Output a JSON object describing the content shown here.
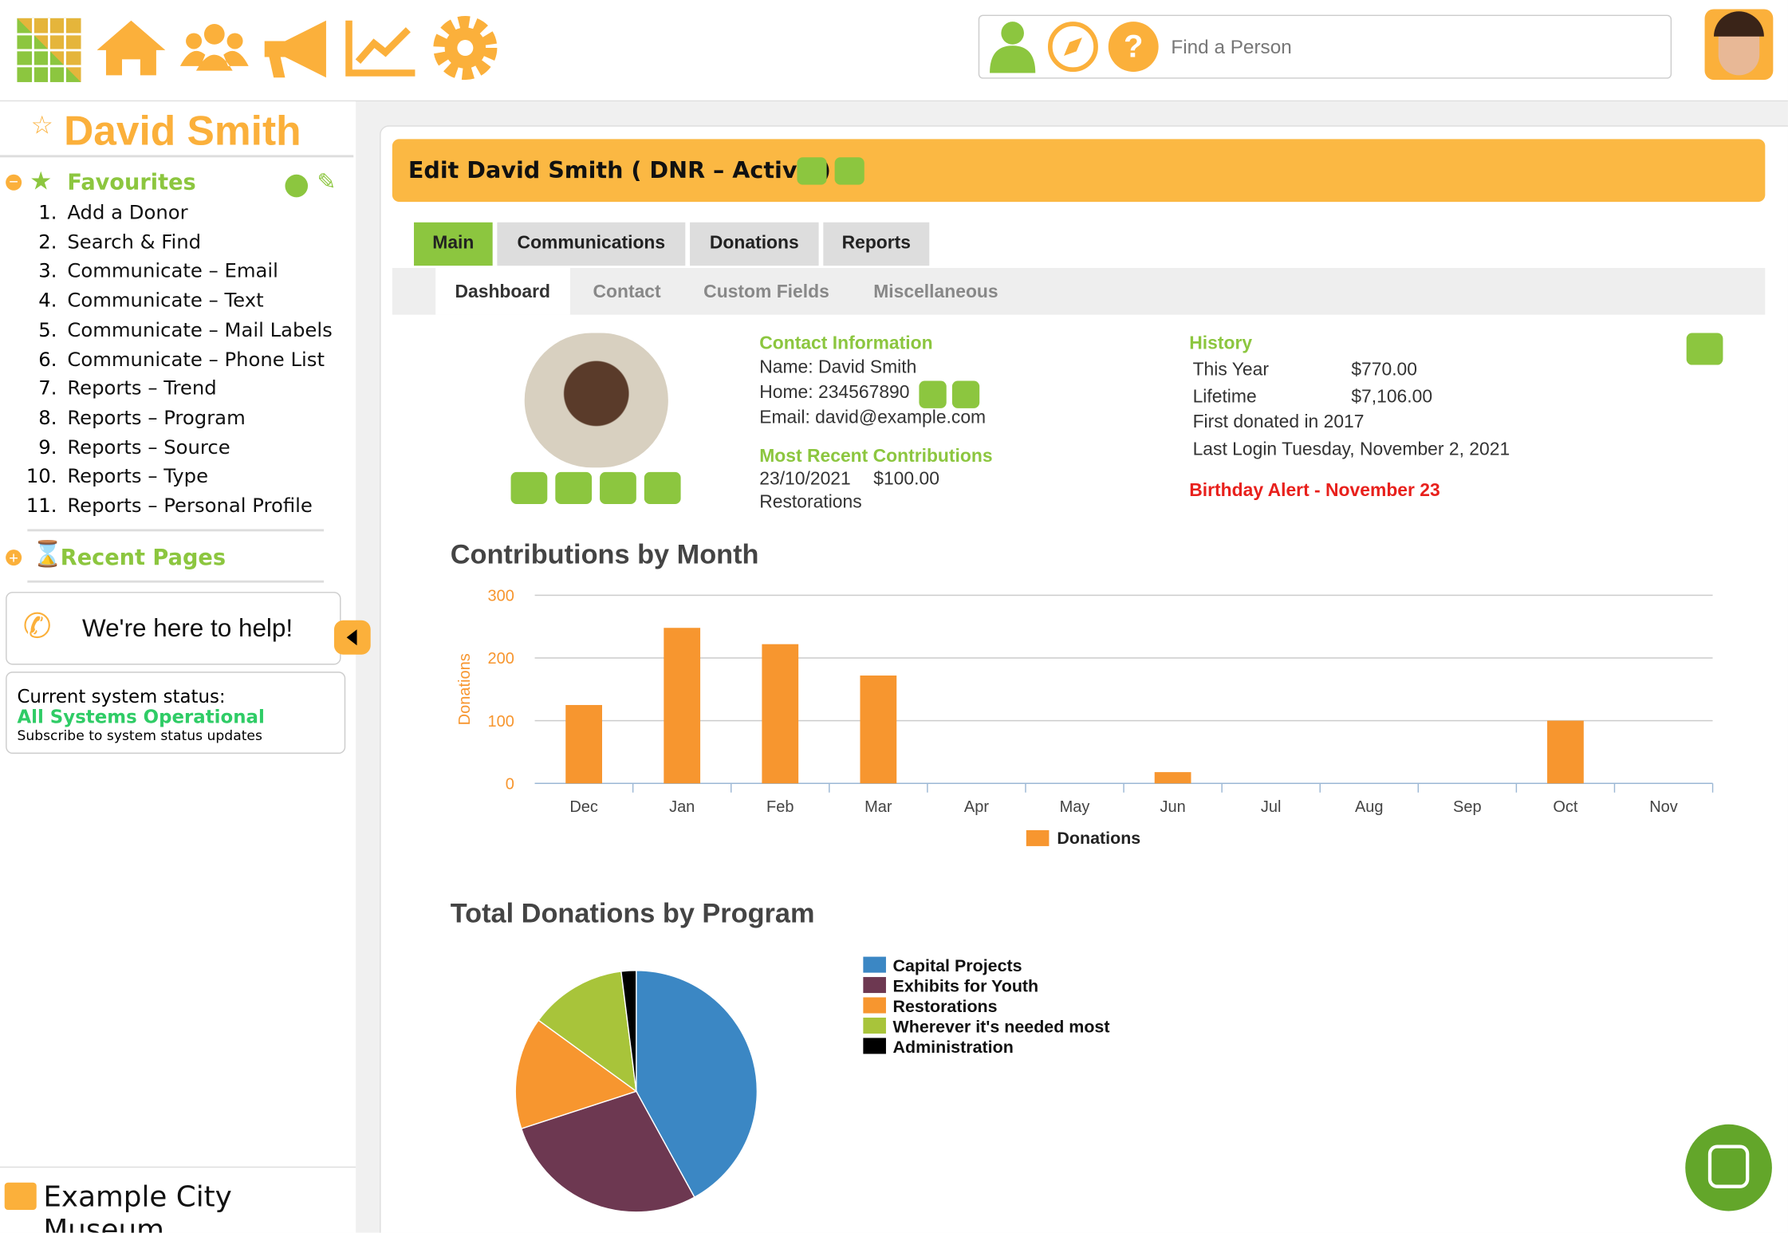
{
  "header": {
    "search_placeholder": "Find a Person"
  },
  "sidebar": {
    "name": "David Smith",
    "favourites_title": "Favourites",
    "favourites": [
      {
        "n": "1.",
        "label": "Add a Donor"
      },
      {
        "n": "2.",
        "label": "Search & Find"
      },
      {
        "n": "3.",
        "label": "Communicate – Email"
      },
      {
        "n": "4.",
        "label": "Communicate – Text"
      },
      {
        "n": "5.",
        "label": "Communicate – Mail Labels"
      },
      {
        "n": "6.",
        "label": "Communicate – Phone List"
      },
      {
        "n": "7.",
        "label": "Reports – Trend"
      },
      {
        "n": "8.",
        "label": "Reports – Program"
      },
      {
        "n": "9.",
        "label": "Reports – Source"
      },
      {
        "n": "10.",
        "label": "Reports – Type"
      },
      {
        "n": "11.",
        "label": "Reports – Personal Profile"
      }
    ],
    "recent_title": "Recent Pages",
    "help": "We're here to help!",
    "status_label": "Current system status:",
    "status": "All Systems Operational",
    "status_link": "Subscribe to system status updates",
    "org": "Example City Museum"
  },
  "main": {
    "title": "Edit David Smith ( DNR – Active )",
    "tabs": [
      "Main",
      "Communications",
      "Donations",
      "Reports"
    ],
    "subtabs": [
      "Dashboard",
      "Contact",
      "Custom Fields",
      "Miscellaneous"
    ],
    "contact_title": "Contact Information",
    "contact": [
      "Name: David Smith",
      "Home: 234567890",
      "Email: david@example.com"
    ],
    "recent_title": "Most Recent Contributions",
    "recent": {
      "date": "23/10/2021",
      "amount": "$100.00",
      "program": "Restorations"
    },
    "history_title": "History",
    "history": [
      [
        "This Year",
        "$770.00"
      ],
      [
        "Lifetime",
        "$7,106.00"
      ]
    ],
    "history_notes": [
      "First donated in 2017",
      "Last Login Tuesday, November 2, 2021"
    ],
    "alert": "Birthday Alert - November 23"
  },
  "chart_data": [
    {
      "type": "bar",
      "title": "Contributions by Month",
      "y_label": "Donations",
      "categories": [
        "Dec",
        "Jan",
        "Feb",
        "Mar",
        "Apr",
        "May",
        "Jun",
        "Jul",
        "Aug",
        "Sep",
        "Oct",
        "Nov"
      ],
      "series": [
        {
          "name": "Donations",
          "color": "#f7962f",
          "values": [
            125,
            248,
            222,
            172,
            0,
            0,
            18,
            0,
            0,
            0,
            100,
            0
          ]
        }
      ],
      "ylim": [
        0,
        300
      ],
      "yticks": [
        0,
        100,
        200,
        300
      ],
      "grid": true
    },
    {
      "type": "pie",
      "title": "Total Donations by Program",
      "categories": [
        "Capital Projects",
        "Exhibits for Youth",
        "Restorations",
        "Wherever it's needed most",
        "Administration"
      ],
      "values": [
        42,
        28,
        15,
        13,
        2
      ],
      "colors": [
        "#3b87c4",
        "#6d3851",
        "#f7962f",
        "#a8c43a",
        "#000000"
      ]
    }
  ]
}
